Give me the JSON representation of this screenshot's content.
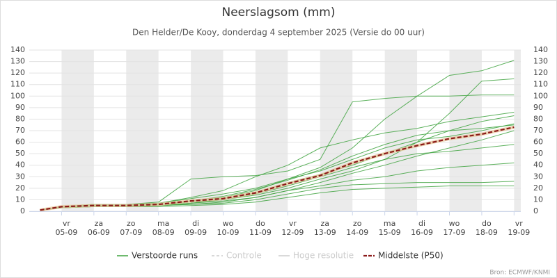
{
  "chart_data": {
    "type": "line",
    "title": "Neerslagsom (mm)",
    "subtitle": "Den Helder/De Kooy, donderdag 4 september 2025 (Versie do 00 uur)",
    "credits": "Bron: ECMWF/KNMI",
    "x": [
      8,
      24,
      48,
      72,
      96,
      120,
      144,
      168,
      192,
      216,
      240,
      264,
      288,
      312,
      336,
      360
    ],
    "xlim": [
      0,
      365
    ],
    "xticks": [
      {
        "value": 24,
        "label": "05-09"
      },
      {
        "value": 48,
        "label": "06-09"
      },
      {
        "value": 72,
        "label": "07-09"
      },
      {
        "value": 96,
        "label": "08-09"
      },
      {
        "value": 120,
        "label": "09-09"
      },
      {
        "value": 144,
        "label": "10-09"
      },
      {
        "value": 168,
        "label": "11-09"
      },
      {
        "value": 192,
        "label": "12-09"
      },
      {
        "value": 216,
        "label": "13-09"
      },
      {
        "value": 240,
        "label": "14-09"
      },
      {
        "value": 264,
        "label": "15-09"
      },
      {
        "value": 288,
        "label": "16-09"
      },
      {
        "value": 312,
        "label": "17-09"
      },
      {
        "value": 336,
        "label": "18-09"
      },
      {
        "value": 360,
        "label": "19-09"
      }
    ],
    "xtick_weekdays": [
      "vr",
      "za",
      "zo",
      "ma",
      "di",
      "wo",
      "do",
      "vr",
      "za",
      "zo",
      "ma",
      "di",
      "wo",
      "do",
      "vr"
    ],
    "ylim": [
      0,
      140
    ],
    "yticks": [
      0,
      10,
      20,
      30,
      40,
      50,
      60,
      70,
      80,
      90,
      100,
      110,
      120,
      130,
      140
    ],
    "y2ticks": [
      0,
      10,
      20,
      30,
      40,
      50,
      60,
      70,
      80,
      90,
      100,
      110,
      120,
      130,
      140
    ],
    "ensemble": {
      "name": "Verstoorde runs",
      "color": "#3fa33f",
      "runs": [
        [
          1,
          3,
          5,
          5,
          5,
          7,
          9,
          12,
          18,
          25,
          33,
          40,
          48,
          55,
          62,
          70
        ],
        [
          1,
          4,
          6,
          6,
          7,
          11,
          15,
          20,
          28,
          38,
          55,
          80,
          100,
          118,
          122,
          131
        ],
        [
          1,
          4,
          6,
          6,
          8,
          28,
          30,
          31,
          35,
          45,
          95,
          98,
          100,
          100,
          101,
          101
        ],
        [
          1,
          3,
          4,
          4,
          5,
          6,
          7,
          10,
          15,
          20,
          23,
          24,
          25,
          25,
          25,
          26
        ],
        [
          1,
          3,
          5,
          5,
          6,
          8,
          10,
          14,
          20,
          28,
          35,
          45,
          60,
          70,
          78,
          83
        ],
        [
          1,
          4,
          5,
          5,
          6,
          9,
          12,
          18,
          28,
          35,
          45,
          55,
          62,
          65,
          70,
          76
        ],
        [
          1,
          3,
          4,
          4,
          5,
          6,
          8,
          12,
          18,
          22,
          27,
          30,
          35,
          38,
          40,
          42
        ],
        [
          1,
          4,
          6,
          6,
          7,
          12,
          18,
          30,
          40,
          55,
          62,
          68,
          72,
          78,
          82,
          86
        ],
        [
          1,
          3,
          4,
          4,
          4,
          5,
          6,
          8,
          12,
          16,
          19,
          20,
          21,
          22,
          22,
          22
        ],
        [
          1,
          4,
          5,
          5,
          6,
          8,
          11,
          16,
          25,
          32,
          40,
          50,
          60,
          85,
          113,
          115
        ],
        [
          1,
          3,
          5,
          5,
          5,
          7,
          10,
          15,
          22,
          30,
          38,
          45,
          50,
          52,
          55,
          58
        ],
        [
          1,
          4,
          6,
          6,
          6,
          9,
          13,
          19,
          27,
          36,
          48,
          58,
          66,
          70,
          72,
          75
        ]
      ]
    },
    "median": {
      "name": "Middelste (P50)",
      "color": "#8b1a1a",
      "values": [
        1,
        4,
        5,
        5,
        6,
        9,
        11,
        16,
        24,
        31,
        42,
        50,
        57,
        63,
        67,
        73
      ]
    },
    "hidden_legend": [
      {
        "name": "Controle"
      },
      {
        "name": "Hoge resolutie"
      }
    ],
    "grid": true
  }
}
